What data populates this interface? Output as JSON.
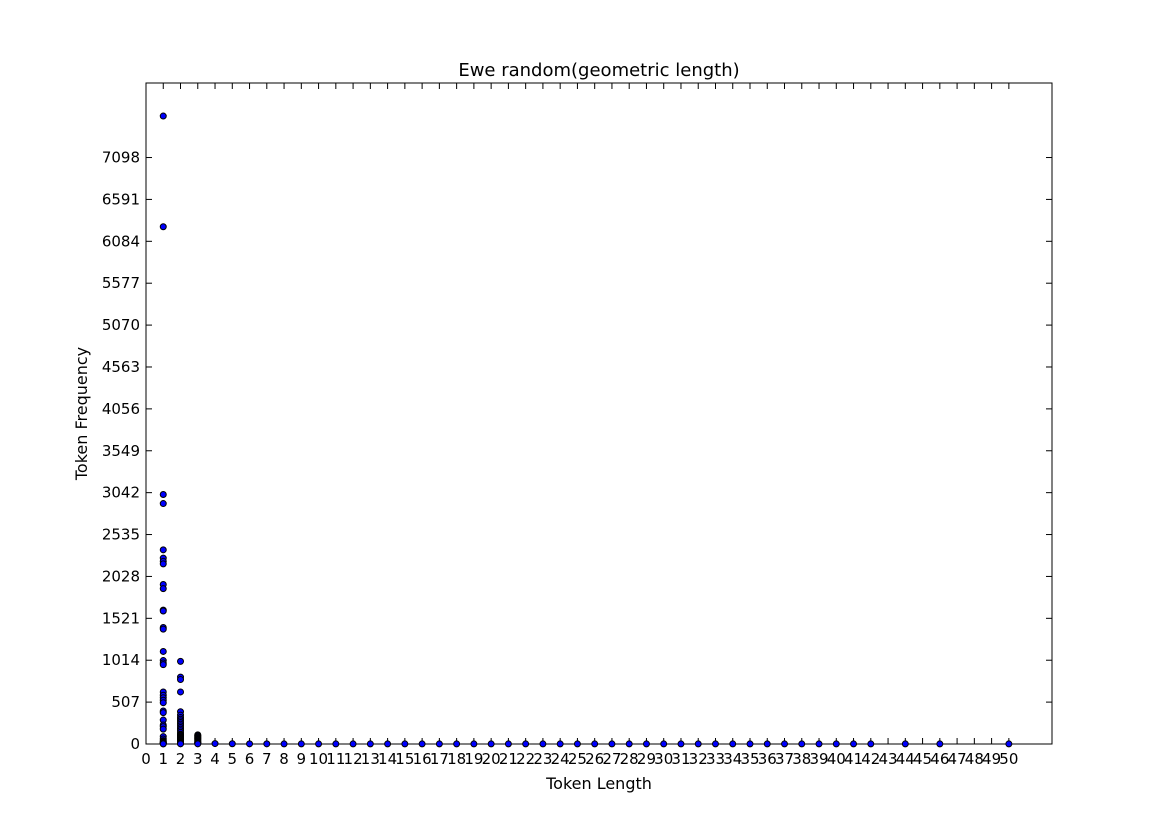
{
  "chart_data": {
    "type": "scatter",
    "title": "Ewe random(geometric length)",
    "xlabel": "Token Length",
    "ylabel": "Token Frequency",
    "xlim": [
      0,
      52.5
    ],
    "ylim": [
      0,
      8000
    ],
    "grid": false,
    "marker_color": "#0000ff",
    "x_ticks": [
      0,
      1,
      2,
      3,
      4,
      5,
      6,
      7,
      8,
      9,
      10,
      11,
      12,
      13,
      14,
      15,
      16,
      17,
      18,
      19,
      20,
      21,
      22,
      23,
      24,
      25,
      26,
      27,
      28,
      29,
      30,
      31,
      32,
      33,
      34,
      35,
      36,
      37,
      38,
      39,
      40,
      41,
      42,
      43,
      44,
      45,
      46,
      47,
      48,
      49,
      50
    ],
    "y_ticks": [
      0,
      507,
      1014,
      1521,
      2028,
      2535,
      3042,
      3549,
      4056,
      4563,
      5070,
      5577,
      6084,
      6591,
      7098
    ],
    "x": [
      1,
      1,
      1,
      1,
      1,
      1,
      1,
      1,
      1,
      1,
      1,
      1,
      1,
      1,
      1,
      1,
      1,
      1,
      1,
      1,
      1,
      1,
      1,
      1,
      1,
      1,
      1,
      1,
      1,
      1,
      1,
      1,
      1,
      1,
      1,
      1,
      1,
      1,
      1,
      1,
      2,
      2,
      2,
      2,
      2,
      2,
      2,
      2,
      2,
      2,
      2,
      2,
      2,
      2,
      2,
      2,
      2,
      2,
      2,
      2,
      2,
      2,
      2,
      2,
      2,
      2,
      2,
      2,
      2,
      2,
      2,
      2,
      3,
      3,
      3,
      3,
      3,
      3,
      3,
      3,
      3,
      3,
      3,
      3,
      3,
      3,
      4,
      5,
      6,
      7,
      8,
      9,
      10,
      11,
      12,
      13,
      14,
      15,
      16,
      17,
      18,
      19,
      20,
      21,
      22,
      23,
      24,
      25,
      26,
      27,
      28,
      29,
      30,
      31,
      32,
      33,
      34,
      35,
      36,
      37,
      38,
      39,
      40,
      41,
      42,
      44,
      46,
      50
    ],
    "y": [
      7600,
      6260,
      3020,
      2910,
      2350,
      2250,
      2210,
      2180,
      1930,
      1880,
      1620,
      1610,
      1410,
      1390,
      1120,
      1010,
      980,
      960,
      630,
      590,
      560,
      530,
      500,
      400,
      380,
      290,
      230,
      210,
      180,
      90,
      60,
      40,
      30,
      20,
      15,
      10,
      8,
      5,
      3,
      1,
      1000,
      810,
      780,
      630,
      390,
      350,
      320,
      300,
      280,
      260,
      240,
      220,
      200,
      180,
      160,
      140,
      120,
      110,
      100,
      90,
      80,
      70,
      60,
      50,
      40,
      30,
      25,
      20,
      15,
      10,
      5,
      2,
      110,
      100,
      90,
      80,
      70,
      60,
      50,
      40,
      30,
      20,
      15,
      10,
      5,
      2,
      5,
      3,
      2,
      2,
      1,
      1,
      1,
      1,
      1,
      1,
      1,
      1,
      1,
      1,
      1,
      1,
      1,
      1,
      1,
      1,
      1,
      1,
      1,
      1,
      1,
      1,
      1,
      1,
      1,
      1,
      1,
      1,
      1,
      1,
      1,
      1,
      1,
      1,
      1,
      1,
      1,
      1
    ]
  }
}
